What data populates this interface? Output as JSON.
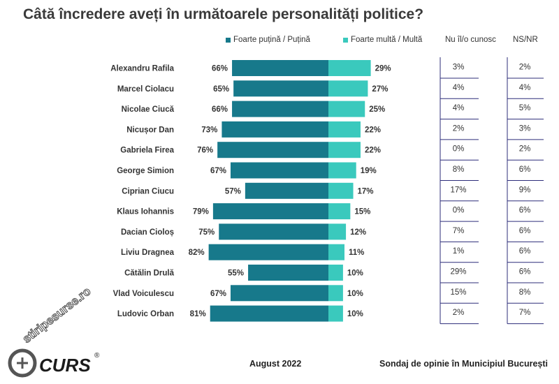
{
  "header": {
    "title": "Câtă încredere aveți în următoarele personalități politice?"
  },
  "legend": {
    "low_label": "Foarte puțină / Puțină",
    "high_label": "Foarte multă / Multă",
    "col3_label": "Nu îl/o cunosc",
    "col4_label": "NS/NR"
  },
  "colors": {
    "low": "#17798b",
    "high": "#3ac9bd",
    "table_line": "#2d2d7a"
  },
  "chart_data": {
    "type": "bar",
    "orientation": "horizontal-diverging",
    "title": "Câtă încredere aveți în următoarele personalități politice?",
    "categories": [
      "Alexandru Rafila",
      "Marcel Ciolacu",
      "Nicolae Ciucă",
      "Nicușor Dan",
      "Gabriela Firea",
      "George Simion",
      "Ciprian Ciucu",
      "Klaus Iohannis",
      "Dacian Cioloș",
      "Liviu Dragnea",
      "Cătălin Drulă",
      "Vlad Voiculescu",
      "Ludovic Orban"
    ],
    "series": [
      {
        "name": "Foarte puțină / Puțină",
        "values": [
          66,
          65,
          66,
          73,
          76,
          67,
          57,
          79,
          75,
          82,
          55,
          67,
          81
        ],
        "labels": [
          "66%",
          "65%",
          "66%",
          "73%",
          "76%",
          "67%",
          "57%",
          "79%",
          "75%",
          "82%",
          "55%",
          "67%",
          "81%"
        ]
      },
      {
        "name": "Foarte multă / Multă",
        "values": [
          29,
          27,
          25,
          22,
          22,
          19,
          17,
          15,
          12,
          11,
          10,
          10,
          10
        ],
        "labels": [
          "29%",
          "27%",
          "25%",
          "22%",
          "22%",
          "19%",
          "17%",
          "15%",
          "12%",
          "11%",
          "10%",
          "10%",
          "10%"
        ]
      },
      {
        "name": "Nu îl/o cunosc",
        "values": [
          3,
          4,
          4,
          2,
          0,
          8,
          17,
          0,
          7,
          1,
          29,
          15,
          2
        ],
        "labels": [
          "3%",
          "4%",
          "4%",
          "2%",
          "0%",
          "8%",
          "17%",
          "0%",
          "7%",
          "1%",
          "29%",
          "15%",
          "2%"
        ]
      },
      {
        "name": "NS/NR",
        "values": [
          2,
          4,
          5,
          3,
          2,
          6,
          9,
          6,
          6,
          6,
          6,
          8,
          7
        ],
        "labels": [
          "2%",
          "4%",
          "5%",
          "3%",
          "2%",
          "6%",
          "9%",
          "6%",
          "6%",
          "6%",
          "6%",
          "8%",
          "7%"
        ]
      }
    ],
    "unit": "%",
    "legend_position": "top",
    "grid": false
  },
  "footer": {
    "logo_text": "CURS",
    "registered_mark": "®",
    "date": "August 2022",
    "source": "Sondaj de opinie în Municipiul București",
    "watermark": "stiripesurse.ro"
  }
}
